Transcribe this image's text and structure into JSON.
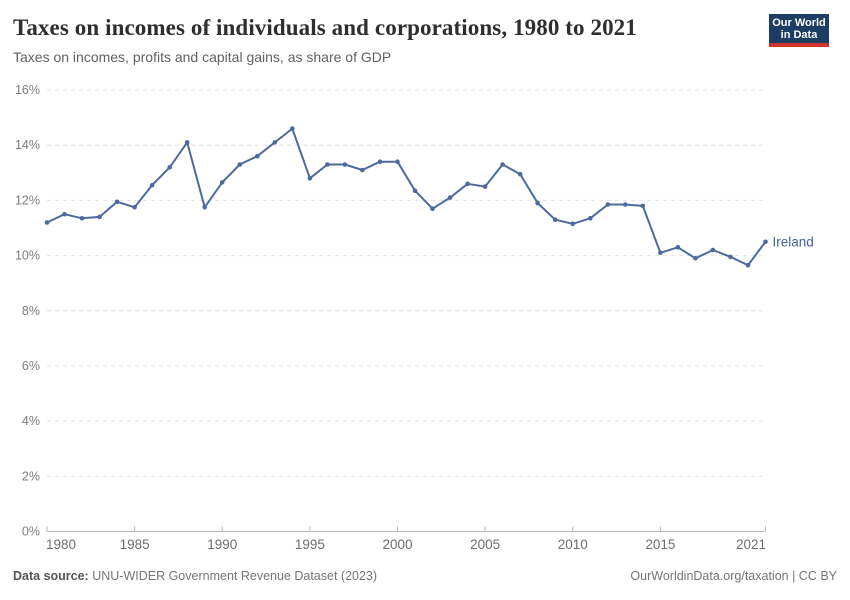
{
  "header": {
    "title": "Taxes on incomes of individuals and corporations, 1980 to 2021",
    "subtitle": "Taxes on incomes, profits and capital gains, as share of GDP"
  },
  "logo": {
    "line1": "Our World",
    "line2": "in Data",
    "bg_color": "#1d3d63",
    "accent_color": "#d0342c"
  },
  "chart_data": {
    "type": "line",
    "title": "Taxes on incomes of individuals and corporations, 1980 to 2021",
    "subtitle": "Taxes on incomes, profits and capital gains, as share of GDP",
    "unit": "%",
    "xlim": [
      1980,
      2021
    ],
    "ylim": [
      0,
      16
    ],
    "yticks": [
      0,
      2,
      4,
      6,
      8,
      10,
      12,
      14,
      16
    ],
    "xticks": [
      1980,
      1985,
      1990,
      1995,
      2000,
      2005,
      2010,
      2015,
      2021
    ],
    "grid": true,
    "legend_position": "end-of-line",
    "series": [
      {
        "name": "Ireland",
        "x": [
          1980,
          1981,
          1982,
          1983,
          1984,
          1985,
          1986,
          1987,
          1988,
          1989,
          1990,
          1991,
          1992,
          1993,
          1994,
          1995,
          1996,
          1997,
          1998,
          1999,
          2000,
          2001,
          2002,
          2003,
          2004,
          2005,
          2006,
          2007,
          2008,
          2009,
          2010,
          2011,
          2012,
          2013,
          2014,
          2015,
          2016,
          2017,
          2018,
          2019,
          2020,
          2021
        ],
        "values": [
          11.2,
          11.5,
          11.35,
          11.4,
          11.95,
          11.75,
          12.55,
          13.2,
          14.1,
          11.75,
          12.65,
          13.3,
          13.6,
          14.1,
          14.6,
          12.8,
          13.3,
          13.3,
          13.1,
          13.4,
          13.4,
          12.35,
          11.7,
          12.1,
          12.6,
          12.5,
          13.3,
          12.95,
          11.9,
          11.3,
          11.15,
          11.35,
          11.85,
          11.85,
          11.8,
          10.1,
          10.3,
          9.9,
          10.2,
          9.95,
          9.65,
          10.5
        ]
      }
    ],
    "colors": {
      "line": "#4c6a9e",
      "marker": "#4c6a9e",
      "series_label": "#44639c",
      "grid": "#e2e2e2",
      "axis": "#b8b8b8",
      "x_tick_label": "#6e6e6e",
      "y_tick_label": "#7c7c7c"
    }
  },
  "footer": {
    "source_label": "Data source:",
    "source_text": " UNU-WIDER Government Revenue Dataset (2023)",
    "right_text": "OurWorldinData.org/taxation | CC BY"
  }
}
